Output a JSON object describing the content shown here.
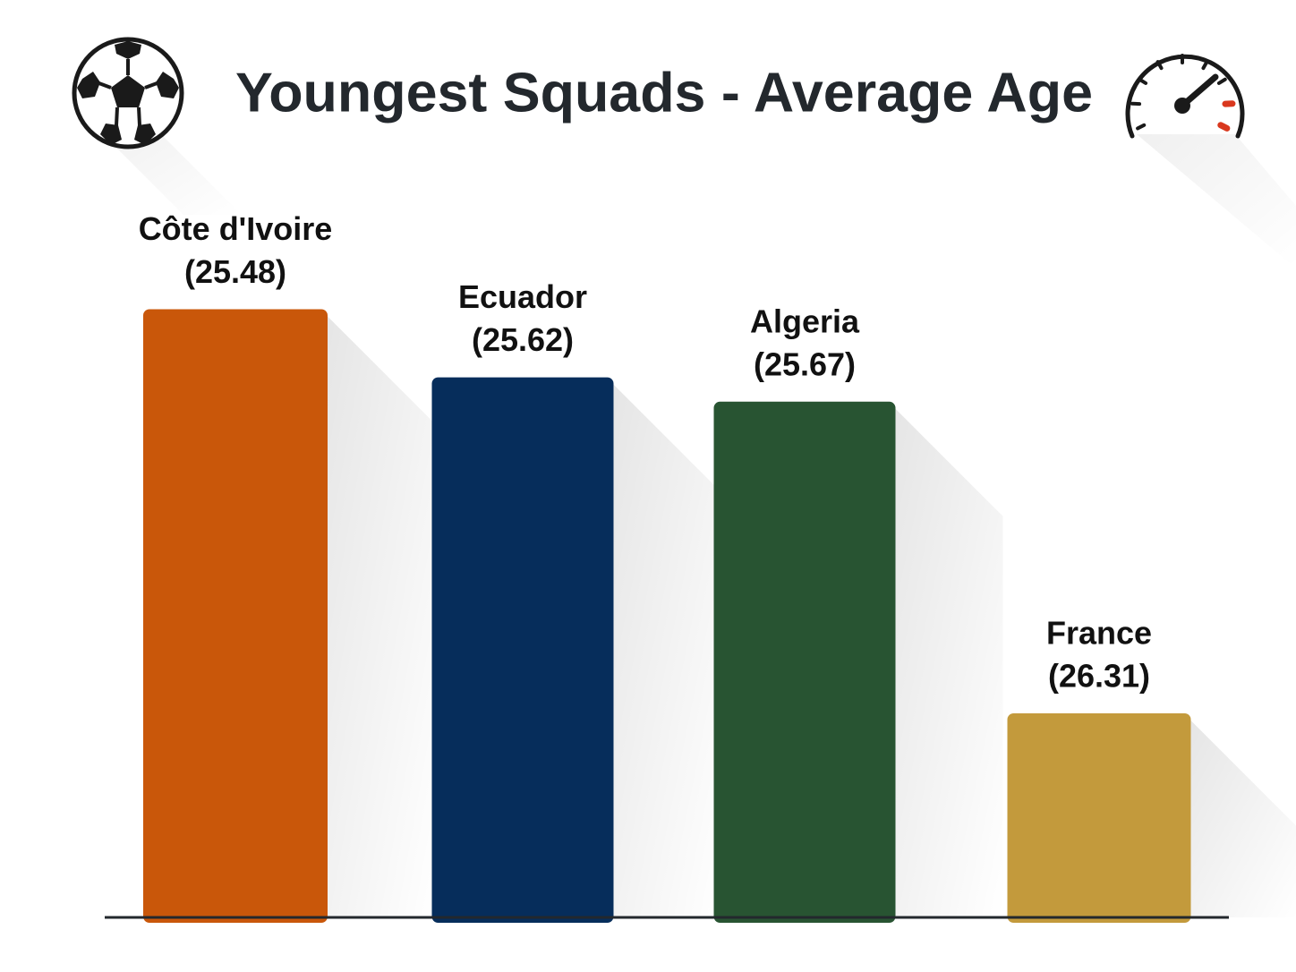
{
  "chart_data": {
    "type": "bar",
    "title": "Youngest Squads - Average Age",
    "categories": [
      "Côte d'Ivoire",
      "Ecuador",
      "Algeria",
      "France"
    ],
    "values": [
      25.48,
      25.62,
      25.67,
      26.31
    ],
    "value_labels": [
      "(25.48)",
      "(25.62)",
      "(25.67)",
      "(26.31)"
    ],
    "colors": [
      "#c9570a",
      "#062d5b",
      "#285432",
      "#c39a3c"
    ],
    "xlabel": "",
    "ylabel": "",
    "grid": false,
    "legend": "none",
    "axis_color": "#23282d"
  },
  "decorations": {
    "left_icon": "soccer-ball-icon",
    "right_icon": "speedometer-icon",
    "gauge_accent": "#d9381e"
  }
}
